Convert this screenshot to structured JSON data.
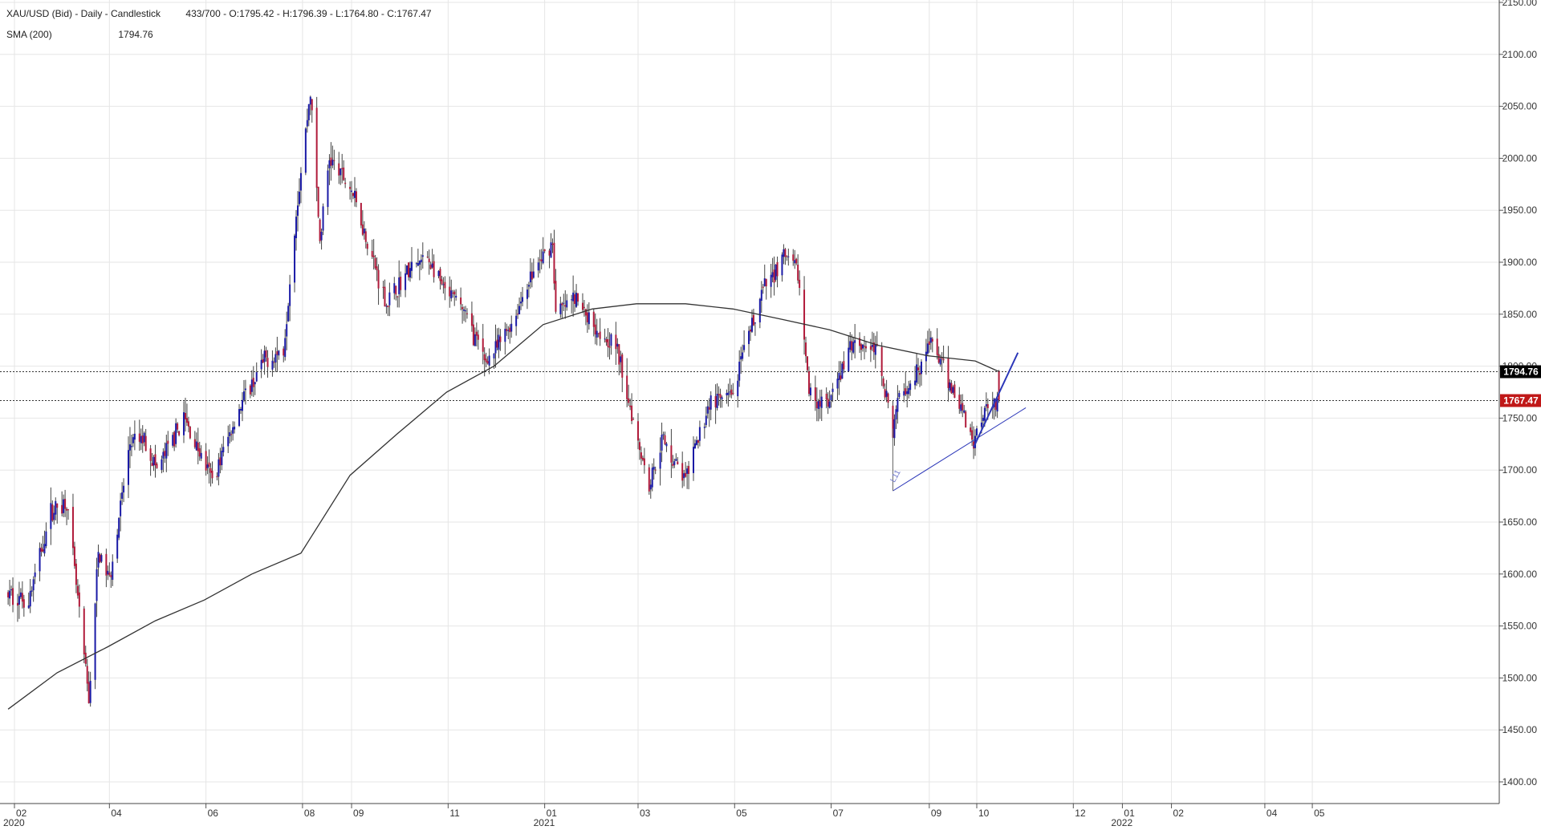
{
  "header": {
    "symbol_line": "XAU/USD (Bid) - Daily - Candlestick",
    "ohlc_line": "433/700 - O:1795.42 - H:1796.39 - L:1764.80 - C:1767.47",
    "sma_label": "SMA (200)",
    "sma_value": "1794.76"
  },
  "colors": {
    "up_candle": "#1a1aa6",
    "down_candle": "#b01a3a",
    "sma_line": "#333333",
    "trendline": "#2b36b8",
    "grid": "#e6e6e6",
    "sma_tag_bg": "#000000",
    "close_tag_bg": "#c01818"
  },
  "chart_data": {
    "type": "candlestick",
    "title": "XAU/USD (Bid) - Daily - Candlestick",
    "y_axis": {
      "ylim": [
        1376,
        2150
      ],
      "ticks": [
        "2150.00",
        "2100.00",
        "2050.00",
        "2000.00",
        "1950.00",
        "1900.00",
        "1850.00",
        "1800.00",
        "1750.00",
        "1700.00",
        "1650.00",
        "1600.00",
        "1550.00",
        "1500.00",
        "1450.00",
        "1400.00"
      ],
      "tick_values": [
        2150,
        2100,
        2050,
        2000,
        1950,
        1900,
        1850,
        1800,
        1750,
        1700,
        1650,
        1600,
        1550,
        1500,
        1450,
        1400
      ],
      "position": "right"
    },
    "x_axis": {
      "ticks": [
        {
          "label": "02",
          "year": "2020",
          "date": "2020-02-01"
        },
        {
          "label": "04",
          "date": "2020-04-01"
        },
        {
          "label": "06",
          "date": "2020-06-01"
        },
        {
          "label": "08",
          "date": "2020-08-01"
        },
        {
          "label": "09",
          "date": "2020-09-01"
        },
        {
          "label": "11",
          "date": "2020-11-01"
        },
        {
          "label": "01",
          "year": "2021",
          "date": "2021-01-01"
        },
        {
          "label": "03",
          "date": "2021-03-01"
        },
        {
          "label": "05",
          "date": "2021-05-01"
        },
        {
          "label": "07",
          "date": "2021-07-01"
        },
        {
          "label": "09",
          "date": "2021-09-01"
        },
        {
          "label": "10",
          "date": "2021-10-01"
        },
        {
          "label": "12",
          "date": "2021-12-01"
        },
        {
          "label": "01",
          "year": "2022",
          "date": "2022-01-01"
        },
        {
          "label": "02",
          "date": "2022-02-01"
        },
        {
          "label": "04",
          "date": "2022-04-01"
        },
        {
          "label": "05",
          "date": "2022-05-01"
        }
      ]
    },
    "grid": true,
    "series": [
      {
        "name": "XAU/USD",
        "kind": "candlestick",
        "price_path": [
          [
            "2020-01-28",
            1580
          ],
          [
            "2020-02-10",
            1575
          ],
          [
            "2020-02-24",
            1660
          ],
          [
            "2020-03-05",
            1670
          ],
          [
            "2020-03-12",
            1575
          ],
          [
            "2020-03-19",
            1478
          ],
          [
            "2020-03-25",
            1620
          ],
          [
            "2020-04-01",
            1595
          ],
          [
            "2020-04-14",
            1725
          ],
          [
            "2020-04-23",
            1730
          ],
          [
            "2020-05-01",
            1700
          ],
          [
            "2020-05-18",
            1750
          ],
          [
            "2020-06-05",
            1690
          ],
          [
            "2020-06-22",
            1760
          ],
          [
            "2020-07-08",
            1805
          ],
          [
            "2020-07-20",
            1815
          ],
          [
            "2020-07-27",
            1935
          ],
          [
            "2020-08-06",
            2065
          ],
          [
            "2020-08-12",
            1920
          ],
          [
            "2020-08-18",
            2000
          ],
          [
            "2020-09-01",
            1970
          ],
          [
            "2020-09-23",
            1860
          ],
          [
            "2020-10-06",
            1890
          ],
          [
            "2020-10-19",
            1905
          ],
          [
            "2020-10-30",
            1870
          ],
          [
            "2020-11-09",
            1860
          ],
          [
            "2020-11-24",
            1805
          ],
          [
            "2020-12-01",
            1815
          ],
          [
            "2020-12-14",
            1850
          ],
          [
            "2020-12-21",
            1880
          ],
          [
            "2021-01-06",
            1920
          ],
          [
            "2021-01-08",
            1850
          ],
          [
            "2021-01-20",
            1865
          ],
          [
            "2021-02-04",
            1835
          ],
          [
            "2021-02-15",
            1820
          ],
          [
            "2021-03-08",
            1685
          ],
          [
            "2021-03-16",
            1730
          ],
          [
            "2021-03-31",
            1690
          ],
          [
            "2021-04-15",
            1765
          ],
          [
            "2021-04-29",
            1770
          ],
          [
            "2021-05-18",
            1870
          ],
          [
            "2021-06-01",
            1905
          ],
          [
            "2021-06-10",
            1890
          ],
          [
            "2021-06-17",
            1775
          ],
          [
            "2021-06-29",
            1760
          ],
          [
            "2021-07-15",
            1825
          ],
          [
            "2021-07-30",
            1815
          ],
          [
            "2021-08-06",
            1765
          ],
          [
            "2021-08-09",
            1730
          ],
          [
            "2021-08-13",
            1780
          ],
          [
            "2021-08-20",
            1785
          ],
          [
            "2021-09-03",
            1825
          ],
          [
            "2021-09-10",
            1795
          ],
          [
            "2021-09-20",
            1765
          ],
          [
            "2021-09-29",
            1728
          ],
          [
            "2021-10-06",
            1762
          ],
          [
            "2021-10-15",
            1767.47
          ]
        ]
      },
      {
        "name": "SMA (200)",
        "kind": "line",
        "points": [
          [
            "2020-01-28",
            1470
          ],
          [
            "2020-02-28",
            1505
          ],
          [
            "2020-03-31",
            1530
          ],
          [
            "2020-04-30",
            1555
          ],
          [
            "2020-05-31",
            1575
          ],
          [
            "2020-06-30",
            1600
          ],
          [
            "2020-07-31",
            1620
          ],
          [
            "2020-08-31",
            1695
          ],
          [
            "2020-09-30",
            1735
          ],
          [
            "2020-10-31",
            1775
          ],
          [
            "2020-11-30",
            1800
          ],
          [
            "2020-12-31",
            1840
          ],
          [
            "2021-01-31",
            1855
          ],
          [
            "2021-02-28",
            1860
          ],
          [
            "2021-03-31",
            1860
          ],
          [
            "2021-04-30",
            1855
          ],
          [
            "2021-05-31",
            1845
          ],
          [
            "2021-06-30",
            1835
          ],
          [
            "2021-07-31",
            1820
          ],
          [
            "2021-08-31",
            1810
          ],
          [
            "2021-09-30",
            1805
          ],
          [
            "2021-10-15",
            1794.76
          ]
        ]
      }
    ],
    "trendlines": [
      {
        "name": "L11",
        "points": [
          [
            "2021-08-09",
            1680
          ],
          [
            "2021-11-01",
            1760
          ]
        ],
        "width": 1
      },
      {
        "name": "",
        "points": [
          [
            "2021-09-29",
            1722
          ],
          [
            "2021-10-27",
            1813
          ]
        ],
        "width": 2
      }
    ],
    "horizontal_lines": [
      {
        "value": 1794.76,
        "label": "1794.76",
        "style": "dotted",
        "tag": "black"
      },
      {
        "value": 1767.47,
        "label": "1767.47",
        "style": "dotted",
        "tag": "red"
      }
    ],
    "annotations": [
      "L11"
    ],
    "legend": "top-left"
  }
}
